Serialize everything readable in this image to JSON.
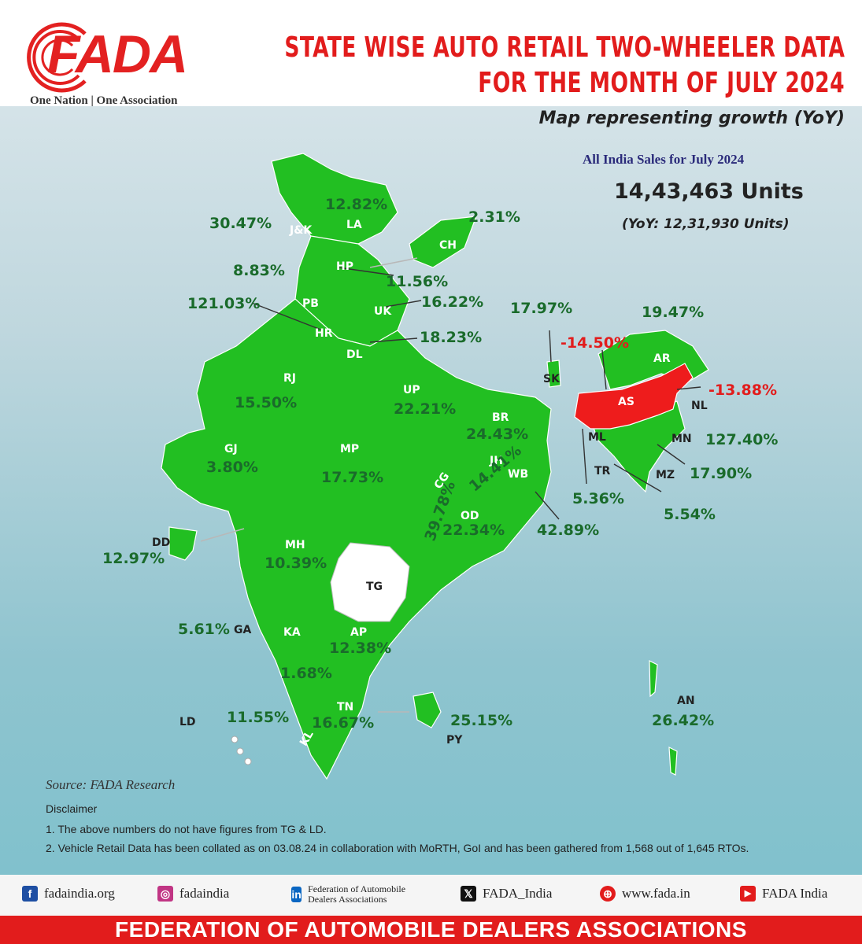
{
  "brand": {
    "logo": "FADA",
    "tagline": "One Nation | One Association"
  },
  "title": {
    "line1": "STATE WISE AUTO RETAIL TWO-WHEELER DATA",
    "line2": "FOR THE MONTH OF JULY 2024"
  },
  "subtitle": "Map representing growth (YoY)",
  "summary": {
    "heading": "All India Sales for July 2024",
    "units": "14,43,463 Units",
    "yoy": "(YoY: 12,31,930 Units)"
  },
  "colors": {
    "positive": "#22bf22",
    "negative": "#ee1c1c",
    "no_data": "#ffffff"
  },
  "states": [
    {
      "code": "J&K",
      "growth": "30.47%"
    },
    {
      "code": "LA",
      "growth": "12.82%"
    },
    {
      "code": "CH",
      "growth": "2.31%"
    },
    {
      "code": "HP",
      "growth": "8.83%"
    },
    {
      "code": "HP-CH",
      "growth": "11.56%"
    },
    {
      "code": "PB",
      "growth": "121.03%"
    },
    {
      "code": "HR",
      "growth": ""
    },
    {
      "code": "UK",
      "growth": "16.22%"
    },
    {
      "code": "DL",
      "growth": "18.23%"
    },
    {
      "code": "RJ",
      "growth": "15.50%"
    },
    {
      "code": "UP",
      "growth": "22.21%"
    },
    {
      "code": "BR",
      "growth": "24.43%"
    },
    {
      "code": "SK",
      "growth": "17.97%"
    },
    {
      "code": "AR",
      "growth": "19.47%"
    },
    {
      "code": "AS",
      "growth": "-14.50%"
    },
    {
      "code": "NL",
      "growth": "-13.88%"
    },
    {
      "code": "ML",
      "growth": "5.36%"
    },
    {
      "code": "MN",
      "growth": "127.40%"
    },
    {
      "code": "TR",
      "growth": "5.54%"
    },
    {
      "code": "MZ",
      "growth": "17.90%"
    },
    {
      "code": "GJ",
      "growth": "3.80%"
    },
    {
      "code": "MP",
      "growth": "17.73%"
    },
    {
      "code": "JH",
      "growth": "14.41%"
    },
    {
      "code": "CG",
      "growth": "39.78%"
    },
    {
      "code": "WB",
      "growth": "42.89%"
    },
    {
      "code": "OD",
      "growth": "22.34%"
    },
    {
      "code": "DD",
      "growth": "12.97%"
    },
    {
      "code": "MH",
      "growth": "10.39%"
    },
    {
      "code": "TG",
      "growth": ""
    },
    {
      "code": "GA",
      "growth": "5.61%"
    },
    {
      "code": "KA",
      "growth": "1.68%"
    },
    {
      "code": "AP",
      "growth": "12.38%"
    },
    {
      "code": "KL",
      "growth": "11.55%"
    },
    {
      "code": "TN",
      "growth": "16.67%"
    },
    {
      "code": "PY",
      "growth": "25.15%"
    },
    {
      "code": "LD",
      "growth": ""
    },
    {
      "code": "AN",
      "growth": "26.42%"
    }
  ],
  "source": "Source: FADA Research",
  "disclaimer": {
    "title": "Disclaimer",
    "items": [
      "1.  The above numbers do not have figures from TG & LD.",
      "2.  Vehicle Retail Data has been collated as on 03.08.24 in collaboration with MoRTH, GoI and has been gathered from 1,568 out of 1,645 RTOs."
    ]
  },
  "socials": [
    {
      "icon": "facebook-icon",
      "glyph": "f",
      "label": "fadaindia.org"
    },
    {
      "icon": "instagram-icon",
      "glyph": "◎",
      "label": "fadaindia"
    },
    {
      "icon": "linkedin-icon",
      "glyph": "in",
      "label": "Federation of Automobile Dealers Associations"
    },
    {
      "icon": "x-icon",
      "glyph": "𝕏",
      "label": "FADA_India"
    },
    {
      "icon": "globe-icon",
      "glyph": "⊕",
      "label": "www.fada.in"
    },
    {
      "icon": "youtube-icon",
      "glyph": "▶",
      "label": "FADA India"
    }
  ],
  "footer": "FEDERATION OF AUTOMOBILE DEALERS ASSOCIATIONS"
}
